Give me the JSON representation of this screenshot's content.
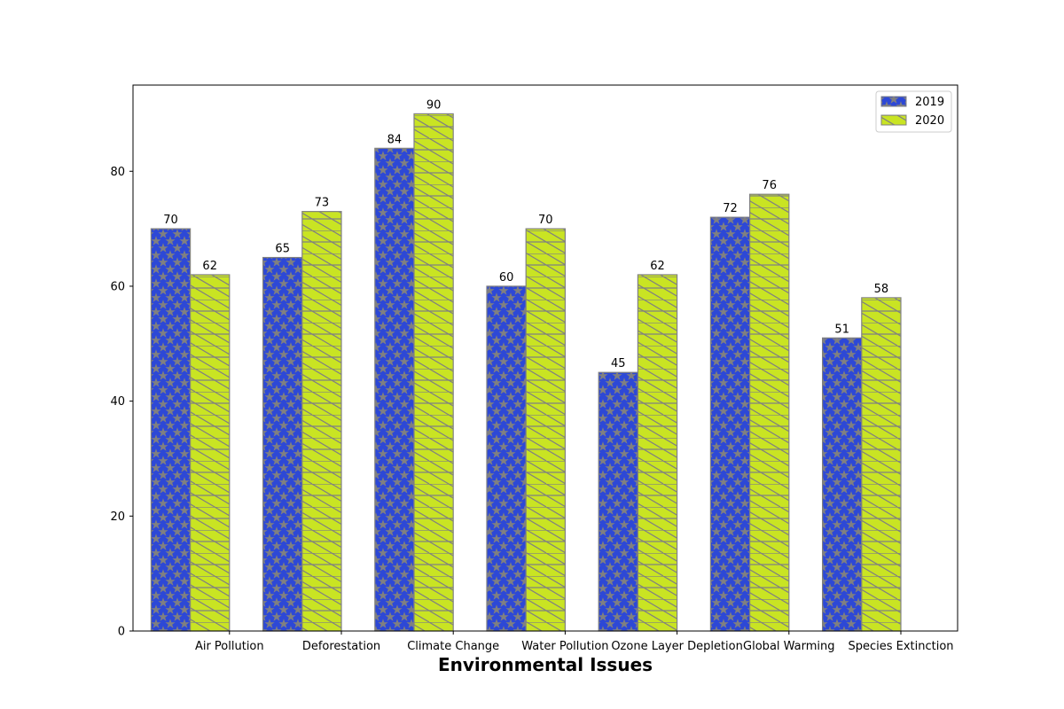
{
  "chart_data": {
    "type": "bar",
    "title": "",
    "xlabel": "Environmental Issues",
    "ylabel": "",
    "categories": [
      "Air Pollution",
      "Deforestation",
      "Climate Change",
      "Water Pollution",
      "Ozone Layer Depletion",
      "Global Warming",
      "Species Extinction"
    ],
    "series": [
      {
        "name": "2019",
        "values": [
          70,
          65,
          84,
          60,
          45,
          72,
          51
        ],
        "color": "#2d48d6",
        "hatch": "stars"
      },
      {
        "name": "2020",
        "values": [
          62,
          73,
          90,
          70,
          62,
          76,
          58
        ],
        "color": "#c9e423",
        "hatch": "diagonal-grid"
      }
    ],
    "ylim": [
      0,
      95
    ],
    "yticks": [
      0,
      20,
      40,
      60,
      80
    ],
    "grid": false,
    "legend": "top-right",
    "bar_edge_color": "#808080"
  }
}
